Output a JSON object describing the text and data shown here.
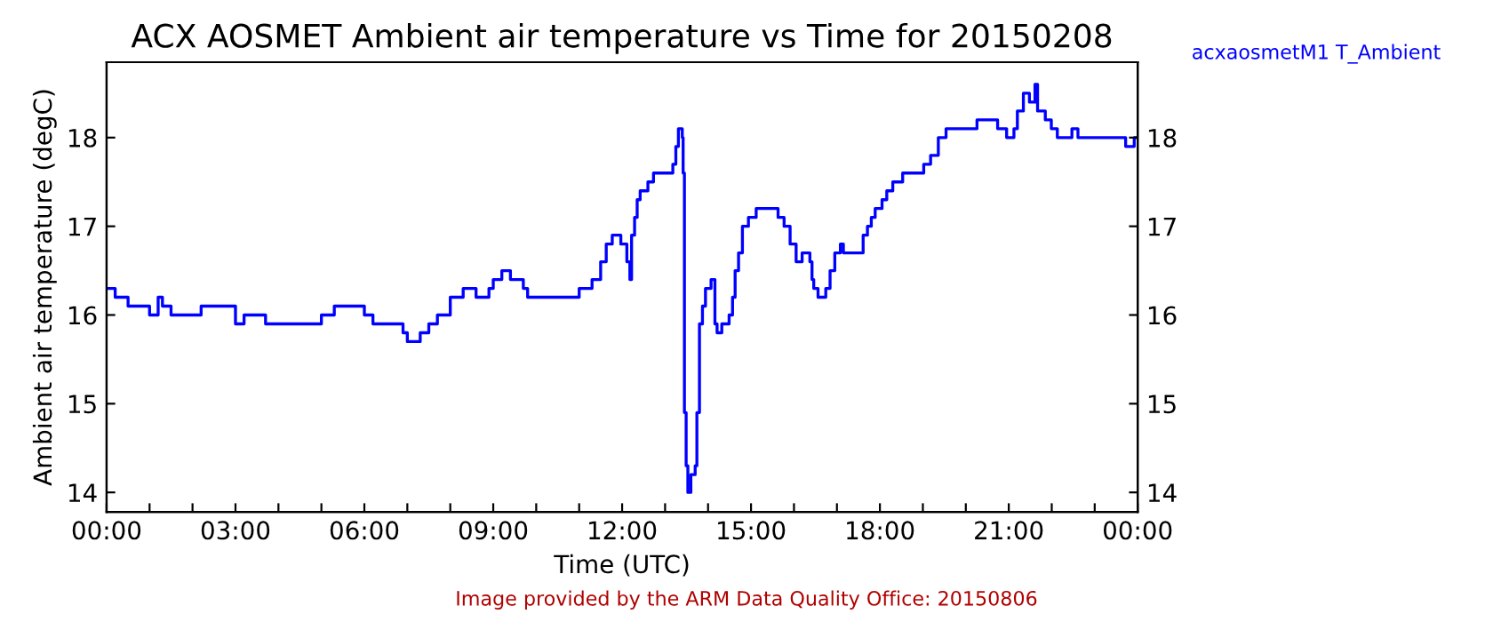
{
  "chart_data": {
    "type": "step",
    "title": "ACX AOSMET Ambient air temperature vs Time for 20150208",
    "xlabel": "Time (UTC)",
    "ylabel": "Ambient air temperature (degC)",
    "annotations": [
      "Image provided by the ARM Data Quality Office: 20150806"
    ],
    "legend": "top right",
    "xlim": [
      0,
      24
    ],
    "xticks": [
      {
        "value": 0,
        "label": "00:00"
      },
      {
        "value": 1,
        "label": null
      },
      {
        "value": 2,
        "label": null
      },
      {
        "value": 3,
        "label": "03:00"
      },
      {
        "value": 4,
        "label": null
      },
      {
        "value": 5,
        "label": null
      },
      {
        "value": 6,
        "label": "06:00"
      },
      {
        "value": 7,
        "label": null
      },
      {
        "value": 8,
        "label": null
      },
      {
        "value": 9,
        "label": "09:00"
      },
      {
        "value": 10,
        "label": null
      },
      {
        "value": 11,
        "label": null
      },
      {
        "value": 12,
        "label": "12:00"
      },
      {
        "value": 13,
        "label": null
      },
      {
        "value": 14,
        "label": null
      },
      {
        "value": 15,
        "label": "15:00"
      },
      {
        "value": 16,
        "label": null
      },
      {
        "value": 17,
        "label": null
      },
      {
        "value": 18,
        "label": "18:00"
      },
      {
        "value": 19,
        "label": null
      },
      {
        "value": 20,
        "label": null
      },
      {
        "value": 21,
        "label": "21:00"
      },
      {
        "value": 22,
        "label": null
      },
      {
        "value": 23,
        "label": null
      },
      {
        "value": 24,
        "label": "00:00"
      }
    ],
    "ylim": [
      13.78,
      18.85
    ],
    "yticks": [
      14,
      15,
      16,
      17,
      18
    ],
    "y2lim": [
      13.78,
      18.85
    ],
    "y2ticks": [
      14,
      15,
      16,
      17,
      18
    ],
    "grid": false,
    "series": [
      {
        "name": "acxaosmetM1 T_Ambient",
        "color": "#0000ff",
        "x": [
          0,
          0.2,
          0.5,
          1.0,
          1.2,
          1.3,
          1.5,
          2.2,
          2.7,
          3.0,
          3.2,
          3.7,
          5.0,
          5.3,
          6.0,
          6.2,
          6.9,
          7.0,
          7.3,
          7.5,
          7.7,
          8.0,
          8.3,
          8.6,
          8.9,
          9.0,
          9.2,
          9.4,
          9.7,
          9.8,
          11.0,
          11.3,
          11.5,
          11.63,
          11.77,
          11.97,
          12.11,
          12.18,
          12.22,
          12.29,
          12.35,
          12.42,
          12.6,
          12.73,
          13.08,
          13.18,
          13.25,
          13.31,
          13.4,
          13.42,
          13.45,
          13.49,
          13.53,
          13.6,
          13.7,
          13.74,
          13.8,
          13.87,
          13.94,
          14.07,
          14.16,
          14.21,
          14.32,
          14.49,
          14.57,
          14.63,
          14.71,
          14.8,
          14.94,
          15.12,
          15.63,
          15.77,
          15.91,
          16.05,
          16.19,
          16.37,
          16.42,
          16.46,
          16.56,
          16.74,
          16.84,
          16.95,
          17.08,
          17.15,
          17.57,
          17.61,
          17.71,
          17.8,
          17.89,
          18.05,
          18.16,
          18.3,
          18.53,
          18.95,
          19.02,
          19.18,
          19.36,
          19.54,
          20.26,
          20.47,
          20.74,
          20.95,
          21.12,
          21.2,
          21.34,
          21.48,
          21.61,
          21.67,
          21.85,
          21.99,
          22.13,
          22.47,
          22.61,
          23.51,
          23.72,
          23.92,
          24.0
        ],
        "values": [
          16.3,
          16.2,
          16.1,
          16.0,
          16.2,
          16.1,
          16.0,
          16.1,
          16.1,
          15.9,
          16.0,
          15.9,
          16.0,
          16.1,
          16.0,
          15.9,
          15.8,
          15.7,
          15.8,
          15.9,
          16.0,
          16.2,
          16.3,
          16.2,
          16.3,
          16.4,
          16.5,
          16.4,
          16.3,
          16.2,
          16.3,
          16.4,
          16.6,
          16.8,
          16.9,
          16.8,
          16.6,
          16.4,
          16.9,
          17.1,
          17.3,
          17.4,
          17.5,
          17.6,
          17.6,
          17.7,
          17.9,
          18.1,
          18.0,
          17.6,
          14.9,
          14.3,
          14.0,
          14.2,
          14.3,
          14.9,
          15.9,
          16.1,
          16.3,
          16.4,
          15.9,
          15.8,
          15.9,
          16.0,
          16.2,
          16.5,
          16.7,
          17.0,
          17.1,
          17.2,
          17.1,
          17.0,
          16.8,
          16.6,
          16.7,
          16.6,
          16.4,
          16.3,
          16.2,
          16.3,
          16.5,
          16.7,
          16.8,
          16.7,
          16.7,
          16.9,
          17.0,
          17.1,
          17.2,
          17.3,
          17.4,
          17.5,
          17.6,
          17.6,
          17.7,
          17.8,
          18.0,
          18.1,
          18.2,
          18.2,
          18.1,
          18.0,
          18.1,
          18.3,
          18.5,
          18.4,
          18.6,
          18.3,
          18.2,
          18.1,
          18.0,
          18.1,
          18.0,
          18.0,
          17.9,
          18.0,
          18.0
        ]
      }
    ]
  }
}
